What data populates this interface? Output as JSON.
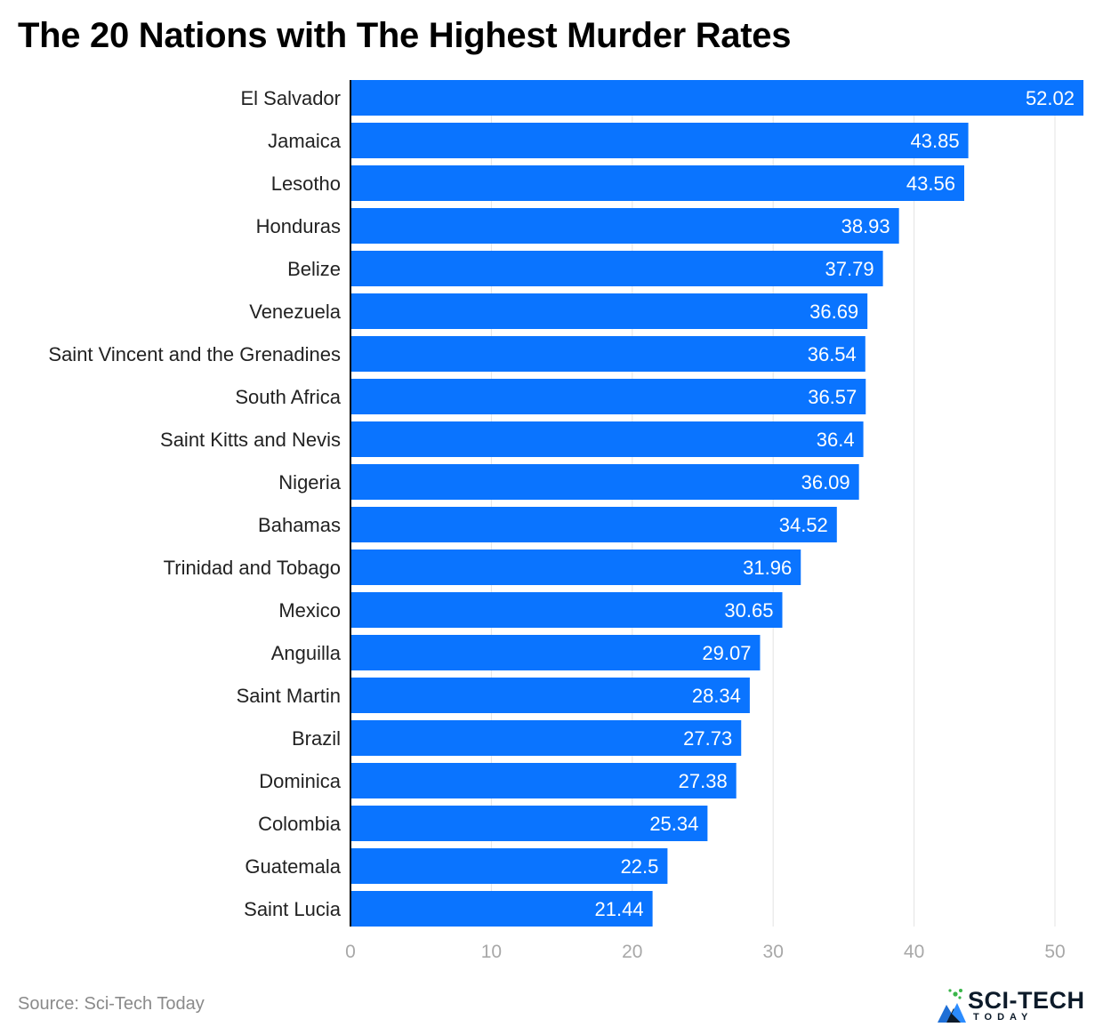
{
  "chart_data": {
    "type": "bar",
    "orientation": "horizontal",
    "title": "The 20 Nations with The Highest Murder Rates",
    "categories": [
      "El Salvador",
      "Jamaica",
      "Lesotho",
      "Honduras",
      "Belize",
      "Venezuela",
      "Saint Vincent and the Grenadines",
      "South Africa",
      "Saint Kitts and Nevis",
      "Nigeria",
      "Bahamas",
      "Trinidad and Tobago",
      "Mexico",
      "Anguilla",
      "Saint Martin",
      "Brazil",
      "Dominica",
      "Colombia",
      "Guatemala",
      "Saint Lucia"
    ],
    "values": [
      52.02,
      43.85,
      43.56,
      38.93,
      37.79,
      36.69,
      36.54,
      36.57,
      36.4,
      36.09,
      34.52,
      31.96,
      30.65,
      29.07,
      28.34,
      27.73,
      27.38,
      25.34,
      22.5,
      21.44
    ],
    "value_labels": [
      "52.02",
      "43.85",
      "43.56",
      "38.93",
      "37.79",
      "36.69",
      "36.54",
      "36.57",
      "36.4",
      "36.09",
      "34.52",
      "31.96",
      "30.65",
      "29.07",
      "28.34",
      "27.73",
      "27.38",
      "25.34",
      "22.5",
      "21.44"
    ],
    "xlim": [
      0,
      52.02
    ],
    "xticks": [
      0,
      10,
      20,
      30,
      40,
      50
    ],
    "grid": true,
    "bar_color": "#0a74ff",
    "grid_color": "#e3e3e3",
    "tick_color": "#a8a8a8"
  },
  "footer": {
    "source": "Source: Sci-Tech Today",
    "logo_text": "SCI-TECH",
    "logo_subtext": "TODAY"
  },
  "icons": {
    "logo_mark": "sci-tech-logo-icon"
  }
}
